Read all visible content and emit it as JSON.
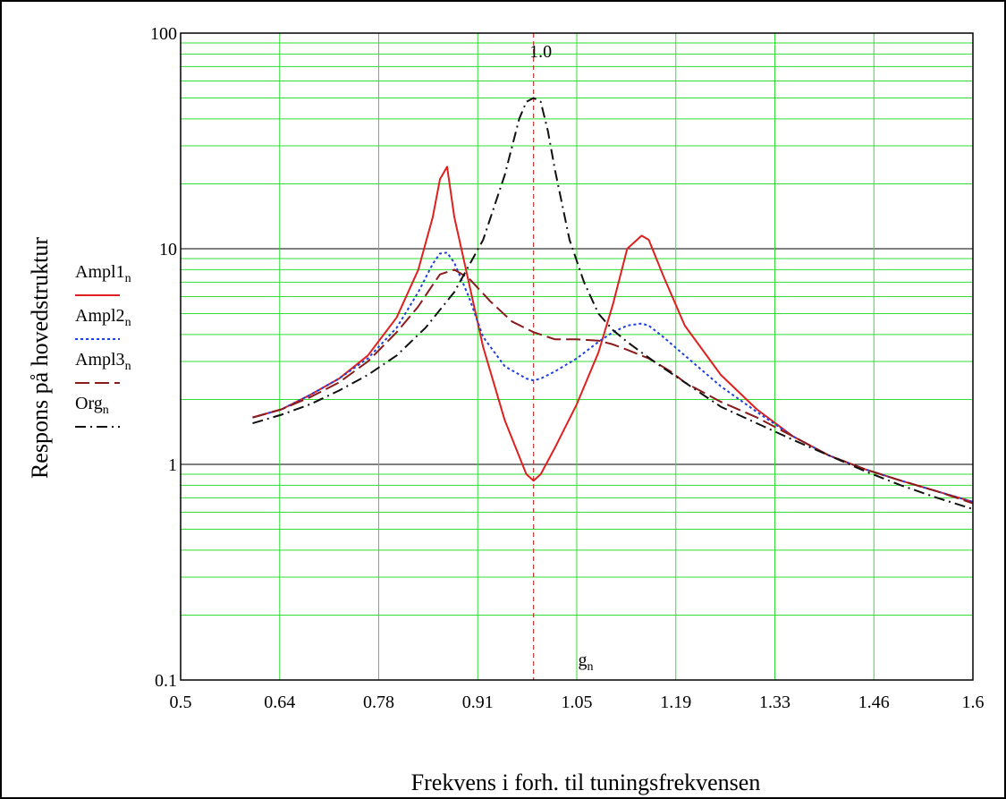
{
  "chart_data": {
    "type": "line",
    "xlabel_symbol": "g",
    "xlabel_subscript": "n",
    "xlabel": "Frekvens i forh. til tuningsfrekvensen",
    "ylabel": "Respons på hovedstruktur",
    "y_scale": "log",
    "xlim": [
      0.5,
      1.6
    ],
    "ylim": [
      0.1,
      100
    ],
    "x_ticks": [
      "0.5",
      "0.64",
      "0.78",
      "0.91",
      "1.05",
      "1.19",
      "1.33",
      "1.46",
      "1.6"
    ],
    "y_ticks": [
      "0.1",
      "1",
      "10",
      "100"
    ],
    "grid": true,
    "legend_position": "left",
    "marker": {
      "x": 0.99,
      "label": "1.0",
      "color": "#c0392b"
    },
    "series": [
      {
        "name": "Ampl1",
        "subscript": "n",
        "color": "#e0201f",
        "dash": "solid",
        "x": [
          0.6,
          0.64,
          0.68,
          0.72,
          0.76,
          0.8,
          0.83,
          0.85,
          0.86,
          0.87,
          0.88,
          0.9,
          0.92,
          0.95,
          0.98,
          0.99,
          1.0,
          1.02,
          1.05,
          1.08,
          1.1,
          1.12,
          1.14,
          1.15,
          1.17,
          1.2,
          1.25,
          1.3,
          1.35,
          1.4,
          1.45,
          1.5,
          1.55,
          1.6
        ],
        "y": [
          1.65,
          1.8,
          2.1,
          2.5,
          3.2,
          4.8,
          8,
          14,
          21,
          24,
          14,
          7,
          3.5,
          1.6,
          0.9,
          0.84,
          0.9,
          1.2,
          1.9,
          3.3,
          5.5,
          10,
          11.5,
          11,
          7.5,
          4.4,
          2.6,
          1.8,
          1.35,
          1.1,
          0.95,
          0.84,
          0.75,
          0.67
        ]
      },
      {
        "name": "Ampl2",
        "subscript": "n",
        "color": "#1f3fe0",
        "dash": "dot",
        "x": [
          0.6,
          0.64,
          0.68,
          0.72,
          0.76,
          0.8,
          0.83,
          0.85,
          0.86,
          0.87,
          0.88,
          0.9,
          0.92,
          0.95,
          0.98,
          0.99,
          1.0,
          1.02,
          1.05,
          1.08,
          1.1,
          1.12,
          1.14,
          1.15,
          1.17,
          1.2,
          1.25,
          1.3,
          1.35,
          1.4,
          1.45,
          1.5,
          1.55,
          1.6
        ],
        "y": [
          1.65,
          1.8,
          2.1,
          2.5,
          3.1,
          4.3,
          6.3,
          8.5,
          9.5,
          9.6,
          8.6,
          6,
          3.9,
          2.85,
          2.5,
          2.45,
          2.5,
          2.7,
          3.1,
          3.7,
          4.1,
          4.4,
          4.5,
          4.4,
          3.9,
          3.2,
          2.3,
          1.75,
          1.35,
          1.1,
          0.95,
          0.84,
          0.75,
          0.67
        ]
      },
      {
        "name": "Ampl3",
        "subscript": "n",
        "color": "#8b1a1a",
        "dash": "longdash",
        "x": [
          0.6,
          0.64,
          0.68,
          0.72,
          0.76,
          0.8,
          0.83,
          0.85,
          0.86,
          0.88,
          0.9,
          0.93,
          0.96,
          0.99,
          1.02,
          1.05,
          1.08,
          1.1,
          1.12,
          1.15,
          1.18,
          1.2,
          1.25,
          1.3,
          1.35,
          1.4,
          1.45,
          1.5,
          1.55,
          1.6
        ],
        "y": [
          1.65,
          1.8,
          2.05,
          2.4,
          3,
          4.1,
          5.4,
          6.8,
          7.6,
          8,
          7.3,
          5.7,
          4.6,
          4.1,
          3.8,
          3.8,
          3.75,
          3.6,
          3.4,
          3.1,
          2.7,
          2.4,
          1.95,
          1.65,
          1.35,
          1.1,
          0.95,
          0.84,
          0.75,
          0.66
        ]
      },
      {
        "name": "Org",
        "subscript": "n",
        "color": "#111111",
        "dash": "dashdot",
        "x": [
          0.6,
          0.64,
          0.68,
          0.72,
          0.76,
          0.8,
          0.84,
          0.88,
          0.92,
          0.95,
          0.97,
          0.98,
          0.99,
          1.0,
          1.01,
          1.02,
          1.04,
          1.06,
          1.08,
          1.1,
          1.12,
          1.14,
          1.17,
          1.2,
          1.25,
          1.3,
          1.35,
          1.4,
          1.45,
          1.5,
          1.55,
          1.6
        ],
        "y": [
          1.55,
          1.7,
          1.9,
          2.2,
          2.6,
          3.2,
          4.3,
          6.3,
          11,
          22,
          40,
          48,
          50,
          48,
          35,
          23,
          11,
          7,
          5,
          4.2,
          3.7,
          3.3,
          2.8,
          2.4,
          1.85,
          1.55,
          1.3,
          1.1,
          0.93,
          0.8,
          0.7,
          0.62
        ]
      }
    ]
  }
}
